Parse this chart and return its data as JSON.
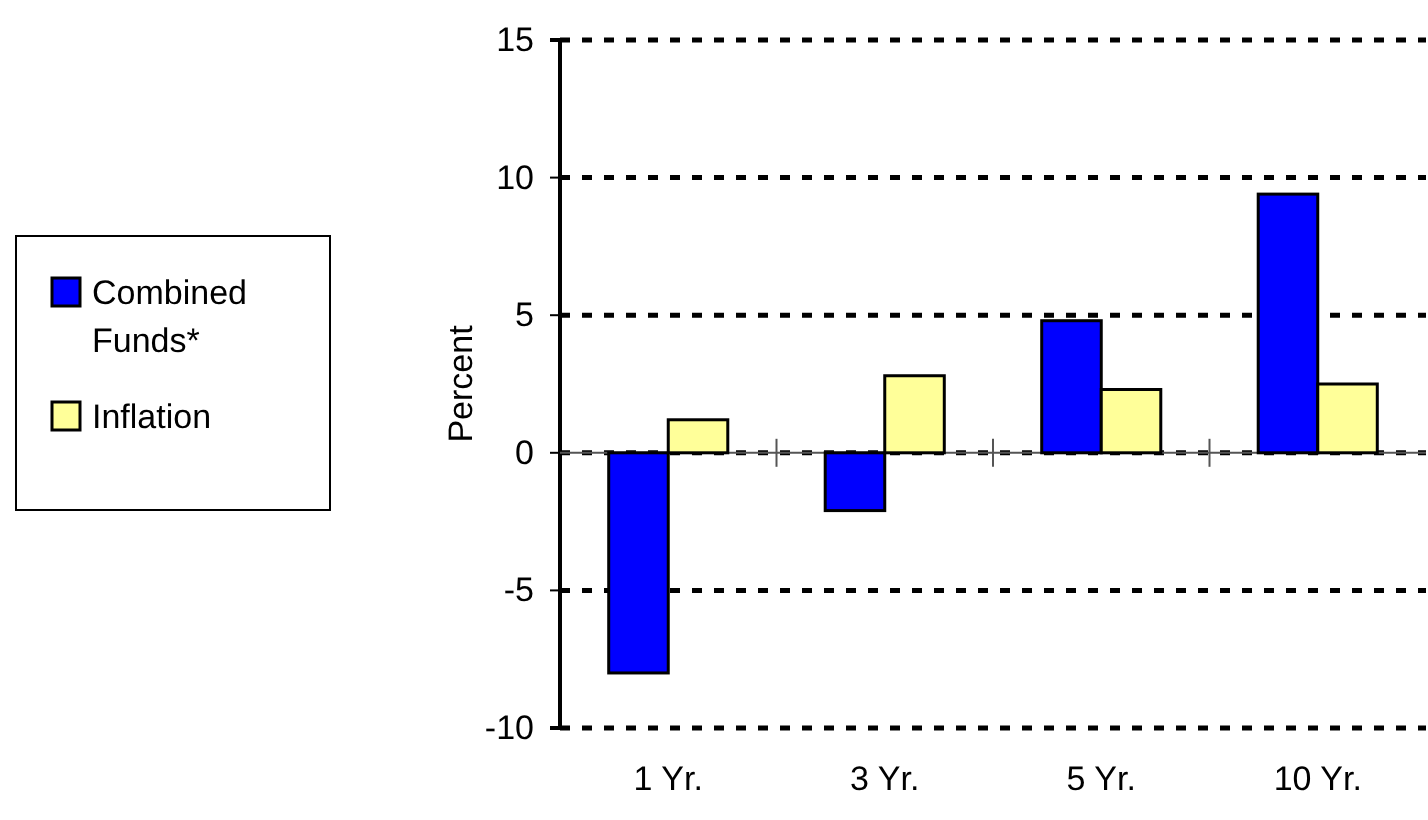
{
  "chart_data": {
    "type": "bar",
    "ylabel": "Percent",
    "categories": [
      "1 Yr.",
      "3 Yr.",
      "5 Yr.",
      "10 Yr."
    ],
    "series": [
      {
        "name": "Combined Funds*",
        "color": "#0000ff",
        "values": [
          -8.0,
          -2.1,
          4.8,
          9.4
        ]
      },
      {
        "name": "Inflation",
        "color": "#ffff99",
        "values": [
          1.2,
          2.8,
          2.3,
          2.5
        ]
      }
    ],
    "ylim": [
      -10,
      15
    ],
    "yticks": [
      -10,
      -5,
      0,
      5,
      10,
      15
    ],
    "grid": "y",
    "legend": "left",
    "line_style": "dashed"
  }
}
